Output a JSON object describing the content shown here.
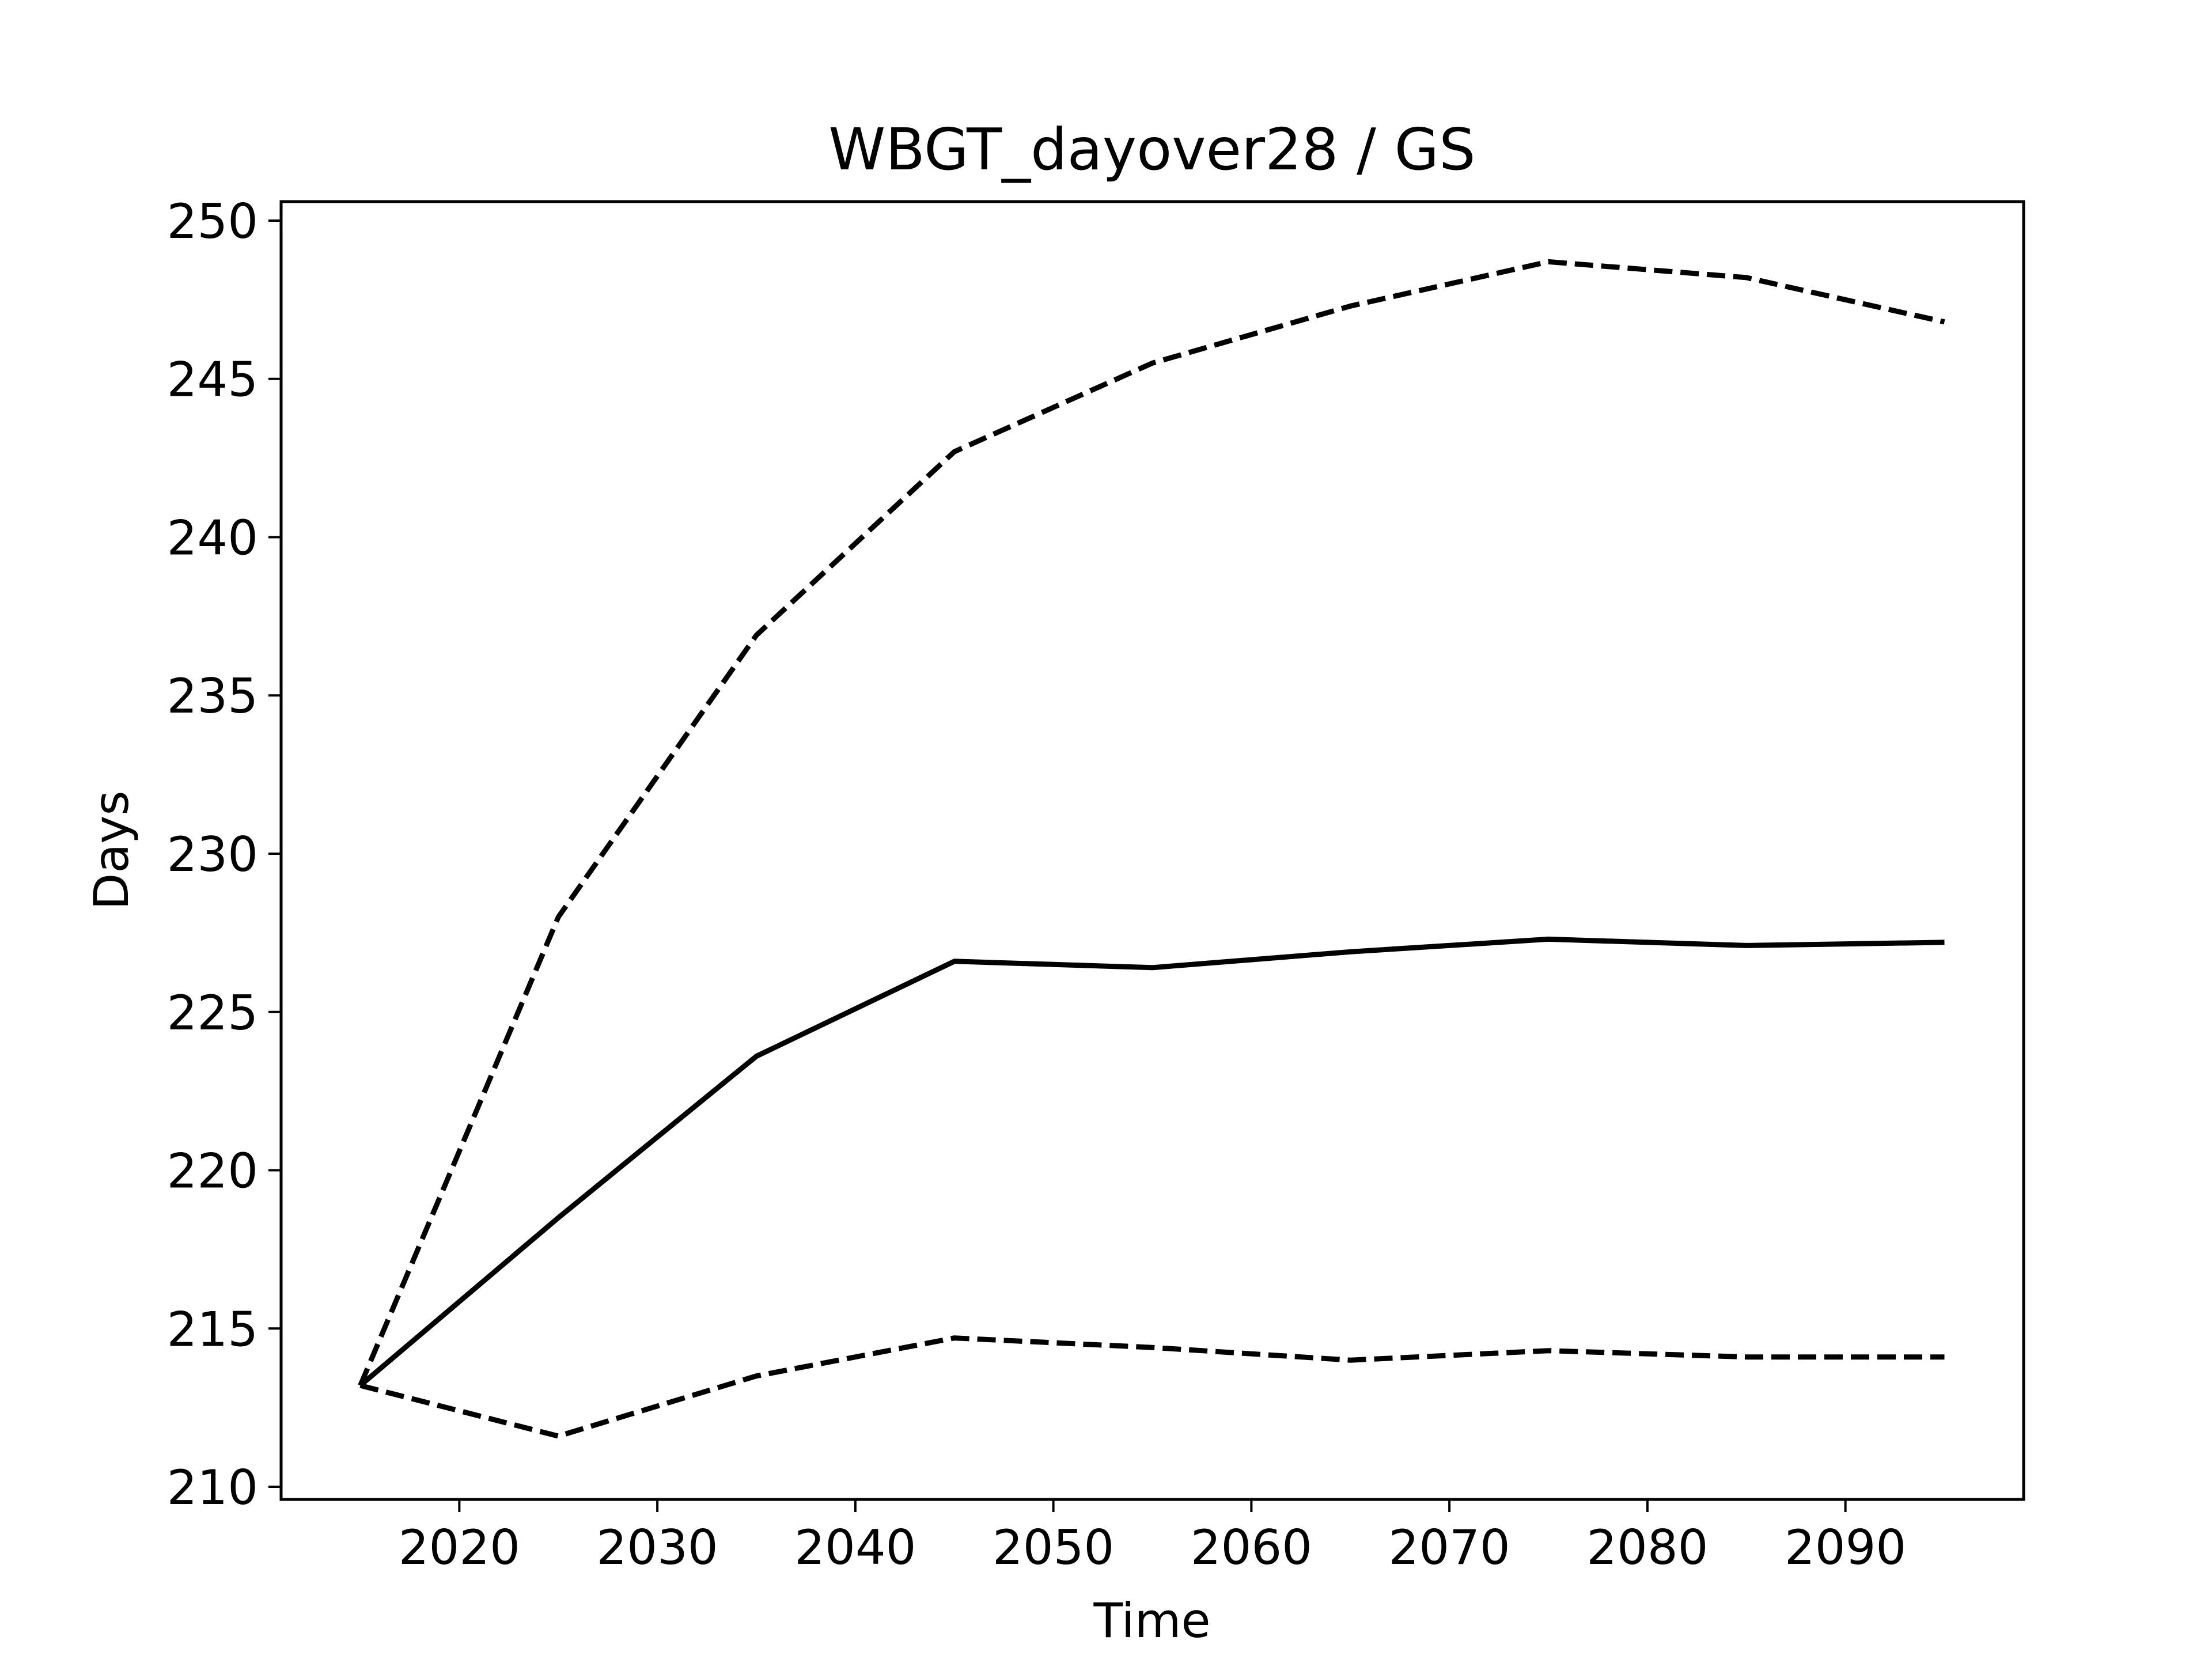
{
  "chart_data": {
    "type": "line",
    "title": "WBGT_dayover28 / GS",
    "xlabel": "Time",
    "ylabel": "Days",
    "xlim": [
      2011,
      2099
    ],
    "ylim": [
      209.6,
      250.6
    ],
    "xticks": [
      2020,
      2030,
      2040,
      2050,
      2060,
      2070,
      2080,
      2090
    ],
    "yticks": [
      210,
      215,
      220,
      225,
      230,
      235,
      240,
      245,
      250
    ],
    "grid": false,
    "legend": "none",
    "x": [
      2015,
      2025,
      2035,
      2045,
      2055,
      2065,
      2075,
      2085,
      2095
    ],
    "series": [
      {
        "style": "dashed",
        "color": "#000000",
        "values": [
          213.2,
          228.0,
          236.9,
          242.7,
          245.5,
          247.3,
          248.7,
          248.2,
          246.8
        ]
      },
      {
        "style": "solid",
        "color": "#000000",
        "values": [
          213.2,
          218.5,
          223.6,
          226.6,
          226.4,
          226.9,
          227.3,
          227.1,
          227.2
        ]
      },
      {
        "style": "dashed",
        "color": "#000000",
        "values": [
          213.2,
          211.6,
          213.5,
          214.7,
          214.4,
          214.0,
          214.3,
          214.1,
          214.1
        ]
      }
    ]
  }
}
